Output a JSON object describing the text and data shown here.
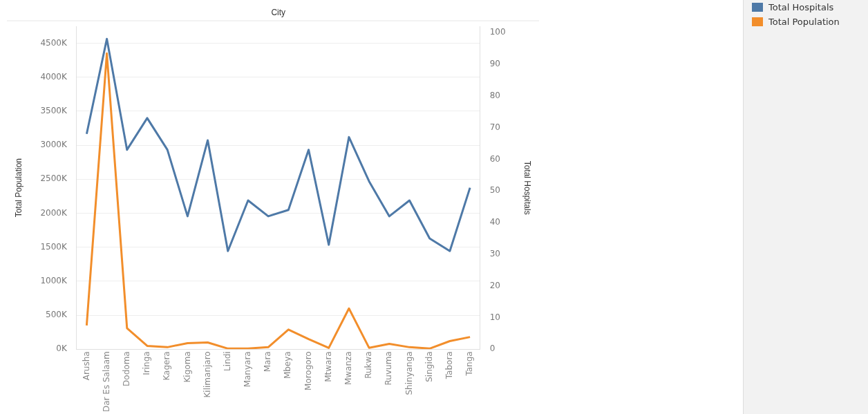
{
  "chart_data": {
    "type": "line",
    "xlabel": "City",
    "ylabel": "Total Population",
    "y2label": "Total Hospitals",
    "categories": [
      "Arusha",
      "Dar Es Salaam",
      "Dodoma",
      "Iringa",
      "Kagera",
      "Kigoma",
      "Kilimanjaro",
      "Lindi",
      "Manyara",
      "Mara",
      "Mbeya",
      "Morogoro",
      "Mtwara",
      "Mwanza",
      "Rukwa",
      "Ruvuma",
      "Shinyanga",
      "Singida",
      "Tabora",
      "Tanga"
    ],
    "series": [
      {
        "name": "Total Hospitals",
        "color": "#4e79a7",
        "axis": "y2",
        "values": [
          68,
          98,
          63,
          73,
          63,
          42,
          66,
          31,
          47,
          42,
          44,
          63,
          33,
          67,
          53,
          42,
          47,
          35,
          31,
          51
        ]
      },
      {
        "name": "Total Population",
        "color": "#f28e2b",
        "values": [
          350000,
          4350000,
          310000,
          50000,
          30000,
          90000,
          100000,
          10000,
          10000,
          30000,
          290000,
          150000,
          20000,
          600000,
          20000,
          80000,
          30000,
          10000,
          120000,
          180000
        ]
      }
    ],
    "ylim": [
      0,
      4750000
    ],
    "yticks": [
      {
        "value": 0,
        "label": "0K"
      },
      {
        "value": 500000,
        "label": "500K"
      },
      {
        "value": 1000000,
        "label": "1000K"
      },
      {
        "value": 1500000,
        "label": "1500K"
      },
      {
        "value": 2000000,
        "label": "2000K"
      },
      {
        "value": 2500000,
        "label": "2500K"
      },
      {
        "value": 3000000,
        "label": "3000K"
      },
      {
        "value": 3500000,
        "label": "3500K"
      },
      {
        "value": 4000000,
        "label": "4000K"
      },
      {
        "value": 4500000,
        "label": "4500K"
      }
    ],
    "y2lim": [
      0,
      102
    ],
    "y2ticks": [
      0,
      10,
      20,
      30,
      40,
      50,
      60,
      70,
      80,
      90,
      100
    ],
    "grid": "y",
    "legend": "top right",
    "marker": "none",
    "line_style": "solid"
  }
}
